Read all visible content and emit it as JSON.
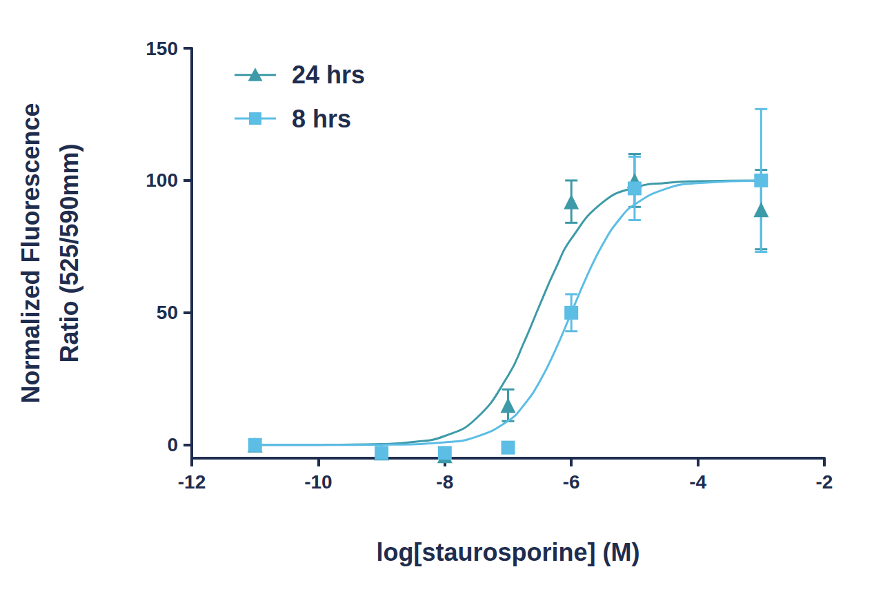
{
  "chart_data": {
    "type": "scatter",
    "x_label": "log[staurosporine] (M)",
    "y_label": "Normalized Fluorescence\nRatio (525/590mm)",
    "xlim": [
      -12,
      -2
    ],
    "xticks": [
      -12,
      -10,
      -8,
      -6,
      -4,
      -2
    ],
    "ylim": [
      -5,
      150
    ],
    "yticks": [
      0,
      50,
      100,
      150
    ],
    "grid": false,
    "legend": "upper left",
    "series": [
      {
        "name": "24 hrs",
        "color": "#3d9aa8",
        "marker": "triangle",
        "x": [
          -11,
          -9,
          -8,
          -7,
          -6,
          -5,
          -3
        ],
        "values": [
          0,
          -3,
          -4,
          15,
          92,
          100,
          89
        ],
        "errors": [
          0,
          0,
          0,
          6,
          8,
          10,
          15
        ],
        "fit": {
          "x": [
            -11,
            -10,
            -9,
            -8.5,
            -8,
            -7.5,
            -7,
            -6.75,
            -6.5,
            -6.25,
            -6,
            -5.5,
            -5,
            -4.5,
            -4,
            -3
          ],
          "values": [
            0,
            0.04,
            0.35,
            1.1,
            3.4,
            10.1,
            26.2,
            38.7,
            52.9,
            66.6,
            78,
            91.8,
            97.3,
            99.1,
            99.7,
            100
          ]
        }
      },
      {
        "name": "8 hrs",
        "color": "#5cbde5",
        "marker": "square",
        "x": [
          -11,
          -9,
          -8,
          -7,
          -6,
          -5,
          -3
        ],
        "values": [
          0,
          -3,
          -3,
          -1,
          50,
          97,
          100
        ],
        "errors": [
          0,
          0,
          0,
          0,
          7,
          12,
          27
        ],
        "fit": {
          "x": [
            -11,
            -10,
            -9,
            -8,
            -7.5,
            -7,
            -6.75,
            -6.5,
            -6.25,
            -6,
            -5.75,
            -5.5,
            -5.25,
            -5,
            -4.5,
            -4,
            -3
          ],
          "values": [
            0,
            0.01,
            0.1,
            1,
            3.1,
            9.1,
            15.1,
            24,
            36,
            50,
            64,
            76,
            85,
            90.9,
            96.9,
            99,
            99.9
          ]
        }
      }
    ]
  }
}
